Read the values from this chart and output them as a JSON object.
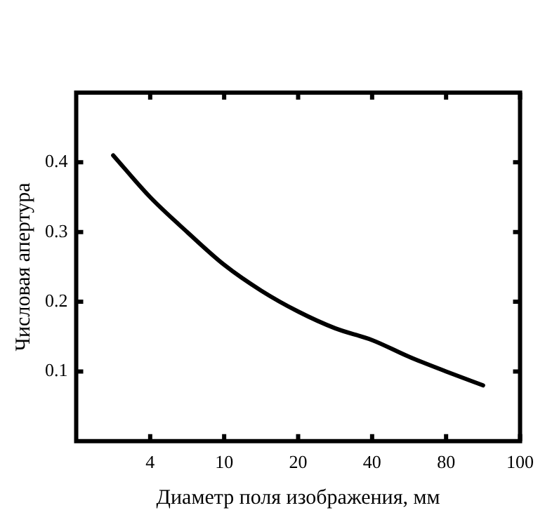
{
  "chart_data": {
    "type": "line",
    "xlabel": "Диаметр поля изображения, мм",
    "ylabel": "Числовая апертура",
    "categories": [
      null,
      null,
      "4",
      null,
      "10",
      null,
      "20",
      null,
      "40",
      null,
      "80",
      null,
      "100"
    ],
    "series": [
      {
        "color": "#000000",
        "values": [
          null,
          0.41,
          0.35,
          0.3,
          0.253,
          0.216,
          0.186,
          0.162,
          0.145,
          0.121,
          0.1,
          0.08,
          null
        ]
      }
    ],
    "ylim": [
      0,
      0.5
    ],
    "yticks": [
      0.1,
      0.2,
      0.3,
      0.4
    ],
    "grid": false,
    "legend": false,
    "marker": "none",
    "line_style": "solid"
  }
}
